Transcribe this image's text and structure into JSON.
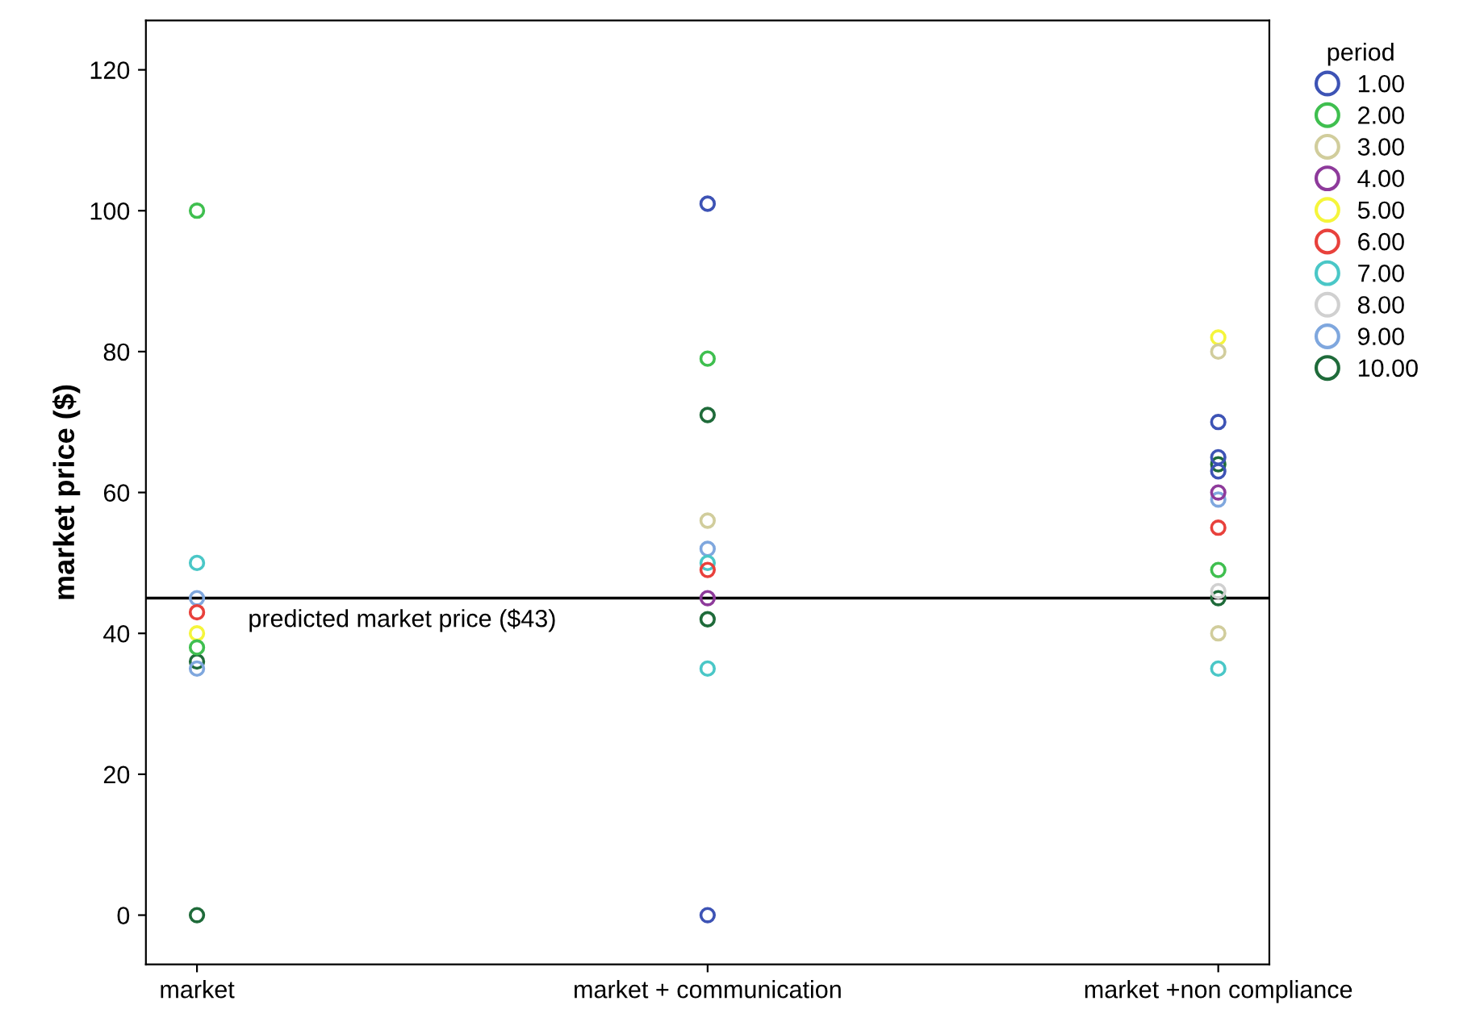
{
  "chart_data": {
    "type": "scatter",
    "ylabel": "market price ($)",
    "legend_title": "period",
    "legend": "right",
    "grid": false,
    "marker": "circle",
    "categories": [
      "market",
      "market + communication",
      "market +non compliance"
    ],
    "ylim": [
      -7,
      127
    ],
    "yticks": [
      0,
      20,
      40,
      60,
      80,
      100,
      120
    ],
    "ref_lines": [
      {
        "axis": "y",
        "value": 45,
        "label": "predicted market price ($43)",
        "color": "#000000"
      }
    ],
    "series": [
      {
        "name": "1.00",
        "color": "#3d53b5",
        "x": [
          "market + communication",
          "market + communication",
          "market +non compliance",
          "market +non compliance",
          "market +non compliance"
        ],
        "values": [
          101,
          0,
          70,
          65,
          63
        ]
      },
      {
        "name": "2.00",
        "color": "#3fbf4f",
        "x": [
          "market",
          "market",
          "market + communication",
          "market +non compliance"
        ],
        "values": [
          100,
          38,
          79,
          49
        ]
      },
      {
        "name": "3.00",
        "color": "#d1cd9c",
        "x": [
          "market + communication",
          "market +non compliance",
          "market +non compliance"
        ],
        "values": [
          56,
          80,
          40
        ]
      },
      {
        "name": "4.00",
        "color": "#8e3a9b",
        "x": [
          "market + communication",
          "market +non compliance"
        ],
        "values": [
          45,
          60
        ]
      },
      {
        "name": "5.00",
        "color": "#f5f53b",
        "x": [
          "market",
          "market +non compliance"
        ],
        "values": [
          40,
          82
        ]
      },
      {
        "name": "6.00",
        "color": "#e8413c",
        "x": [
          "market",
          "market + communication",
          "market +non compliance"
        ],
        "values": [
          43,
          49,
          55
        ]
      },
      {
        "name": "7.00",
        "color": "#4ac7c7",
        "x": [
          "market",
          "market + communication",
          "market + communication",
          "market +non compliance"
        ],
        "values": [
          50,
          50,
          35,
          35
        ]
      },
      {
        "name": "8.00",
        "color": "#d0d0d0",
        "x": [
          "market +non compliance"
        ],
        "values": [
          46
        ]
      },
      {
        "name": "9.00",
        "color": "#7fa7de",
        "x": [
          "market",
          "market",
          "market + communication",
          "market +non compliance"
        ],
        "values": [
          45,
          35,
          52,
          59
        ]
      },
      {
        "name": "10.00",
        "color": "#1f6b3a",
        "x": [
          "market",
          "market",
          "market + communication",
          "market + communication",
          "market +non compliance",
          "market +non compliance"
        ],
        "values": [
          36,
          0,
          71,
          42,
          64,
          45
        ]
      }
    ]
  }
}
